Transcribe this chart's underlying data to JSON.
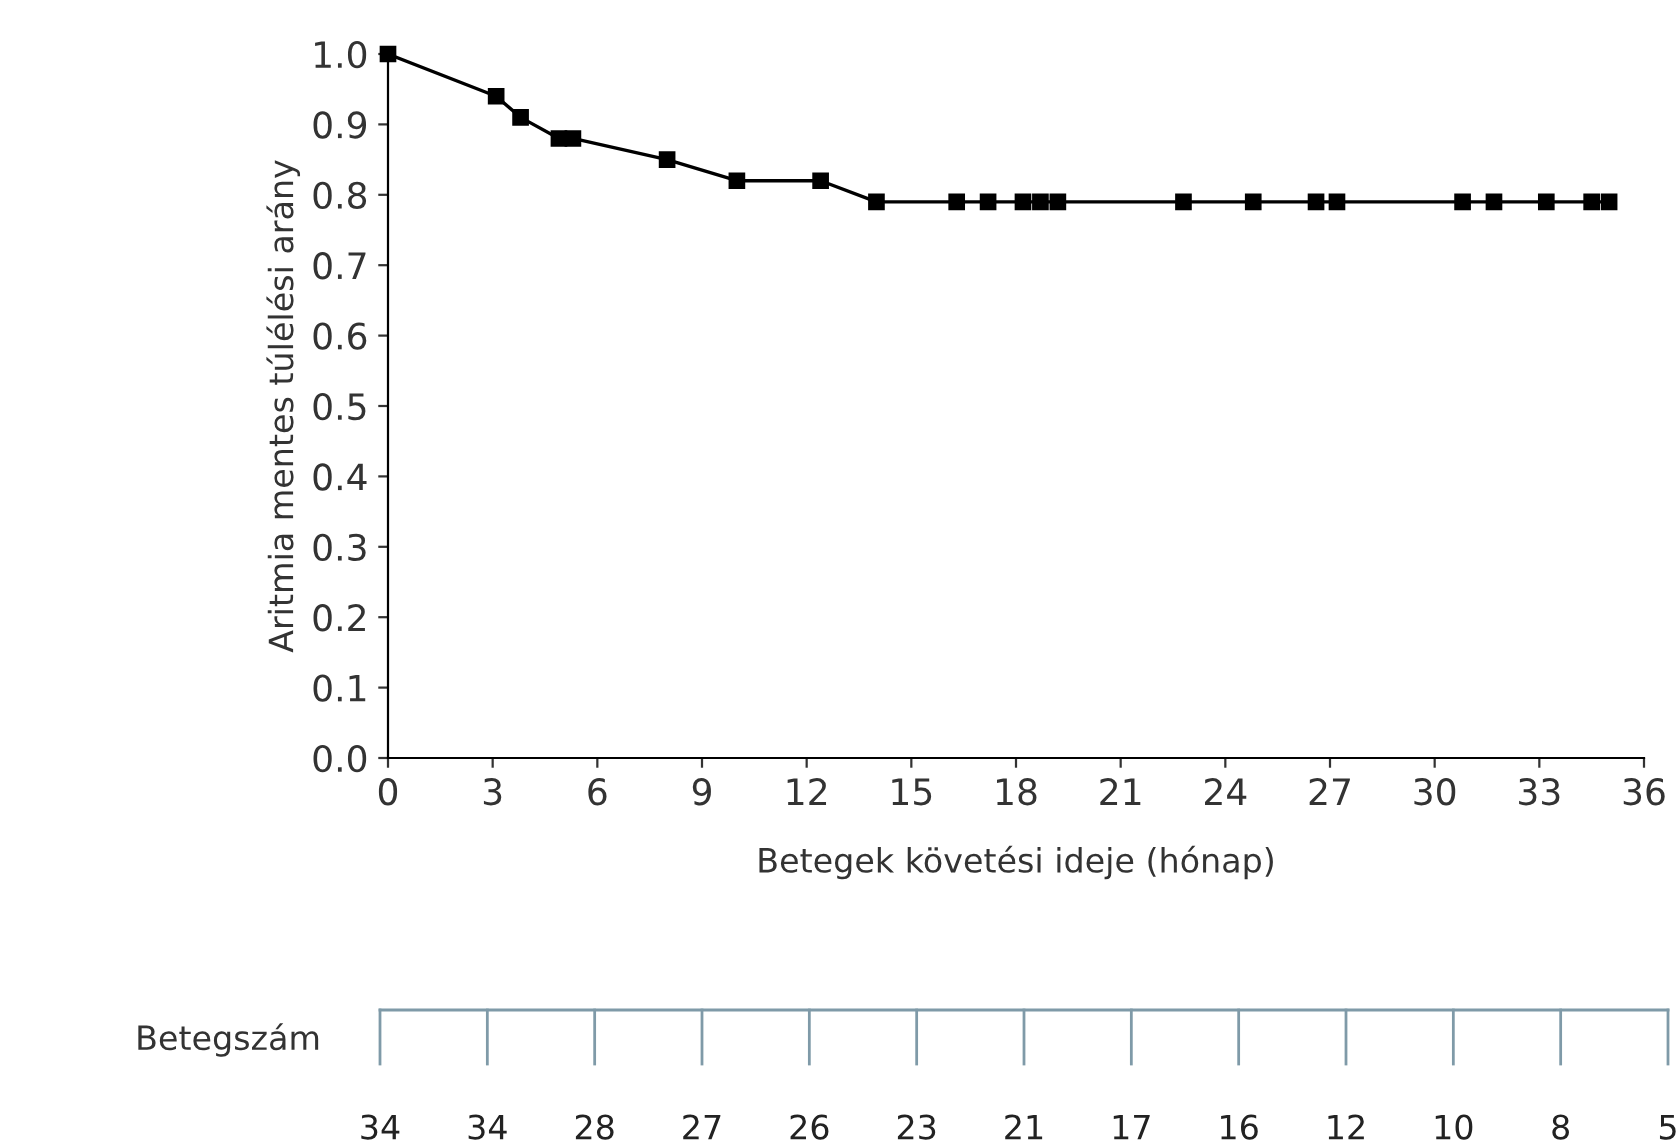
{
  "chart_data": [
    {
      "type": "line",
      "xlabel": "Betegek követési ideje (hónap)",
      "ylabel": "Aritmia mentes túlélési arány",
      "marker": "square",
      "line_style": "solid",
      "grid": false,
      "legend": false,
      "series": [
        {
          "color": "#000000",
          "x": [
            0,
            3.1,
            3.8,
            4.9,
            5.3,
            8.0,
            10.0,
            12.4,
            14.0,
            16.3,
            17.2,
            18.2,
            18.7,
            19.2,
            22.8,
            24.8,
            26.6,
            27.2,
            30.8,
            31.7,
            33.2,
            34.5,
            35.0
          ],
          "values": [
            1.0,
            0.94,
            0.91,
            0.88,
            0.88,
            0.85,
            0.82,
            0.82,
            0.79,
            0.79,
            0.79,
            0.79,
            0.79,
            0.79,
            0.79,
            0.79,
            0.79,
            0.79,
            0.79,
            0.79,
            0.79,
            0.79,
            0.79
          ]
        }
      ],
      "xlim": [
        0,
        36
      ],
      "xticks": [
        0,
        3,
        6,
        9,
        12,
        15,
        18,
        21,
        24,
        27,
        30,
        33,
        36
      ],
      "ylim": [
        0,
        1.0
      ],
      "yticks": [
        {
          "value": 0,
          "label": "0.0"
        },
        {
          "value": 0.1,
          "label": "0.1"
        },
        {
          "value": 0.2,
          "label": "0.2"
        },
        {
          "value": 0.3,
          "label": "0.3"
        },
        {
          "value": 0.4,
          "label": "0.4"
        },
        {
          "value": 0.5,
          "label": "0.5"
        },
        {
          "value": 0.6,
          "label": "0.6"
        },
        {
          "value": 0.7,
          "label": "0.7"
        },
        {
          "value": 0.8,
          "label": "0.8"
        },
        {
          "value": 0.9,
          "label": "0.9"
        },
        {
          "value": 1.0,
          "label": "1.0"
        }
      ]
    },
    {
      "type": "other",
      "ylabel": "Betegszám",
      "categories": [
        null,
        null,
        null,
        null,
        null,
        null,
        null,
        null,
        null,
        null,
        null,
        null,
        null
      ],
      "values": [
        34,
        34,
        28,
        27,
        26,
        23,
        21,
        17,
        16,
        12,
        10,
        8,
        5
      ],
      "data_labels": true,
      "color": "#7f9aa8"
    }
  ]
}
